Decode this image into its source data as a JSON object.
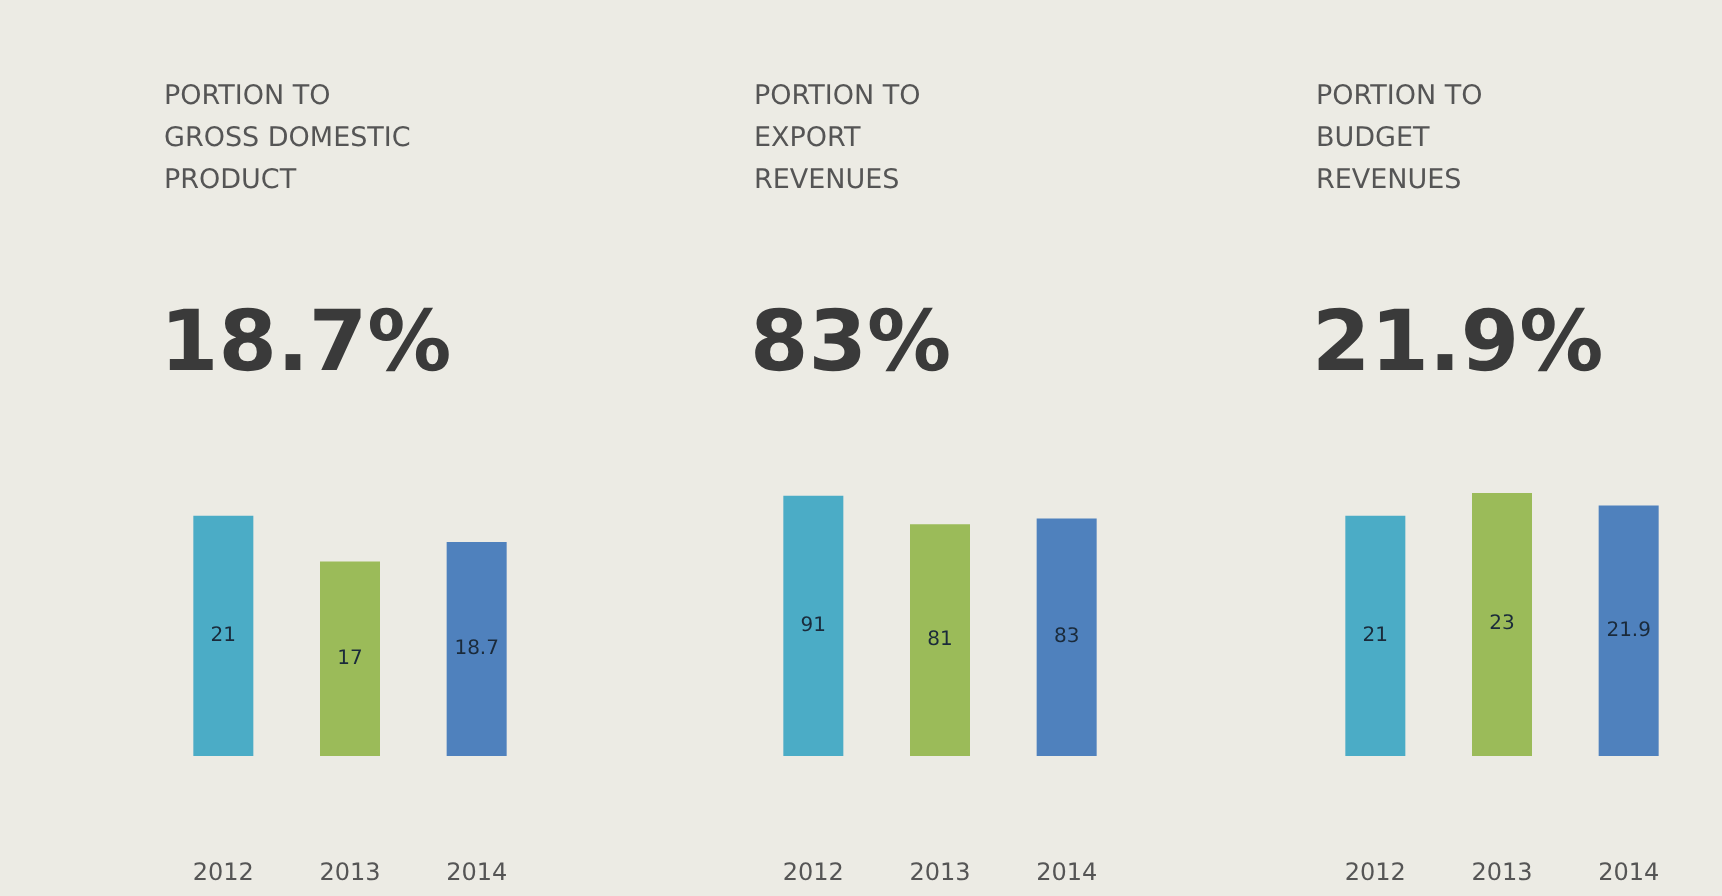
{
  "chart_data": [
    {
      "type": "bar",
      "title": "PORTION TO GROSS DOMESTIC PRODUCT",
      "subtitle": "18.7%",
      "categories": [
        "2012",
        "2013",
        "2014"
      ],
      "values": [
        21,
        17,
        18.7
      ],
      "colors": [
        "#4bacc6",
        "#9bbb59",
        "#4f81bd"
      ],
      "data_labels": true,
      "tick_labels": "x"
    },
    {
      "type": "bar",
      "title": "PORTION TO EXPORT REVENUES",
      "subtitle": "83%",
      "categories": [
        "2012",
        "2013",
        "2014"
      ],
      "values": [
        91,
        81,
        83
      ],
      "colors": [
        "#4bacc6",
        "#9bbb59",
        "#4f81bd"
      ],
      "data_labels": true,
      "tick_labels": "x"
    },
    {
      "type": "bar",
      "title": "PORTION TO BUDGET REVENUES",
      "subtitle": "21.9%",
      "categories": [
        "2012",
        "2013",
        "2014"
      ],
      "values": [
        21,
        23,
        21.9
      ],
      "colors": [
        "#4bacc6",
        "#9bbb59",
        "#4f81bd"
      ],
      "data_labels": true,
      "tick_labels": "x"
    }
  ]
}
